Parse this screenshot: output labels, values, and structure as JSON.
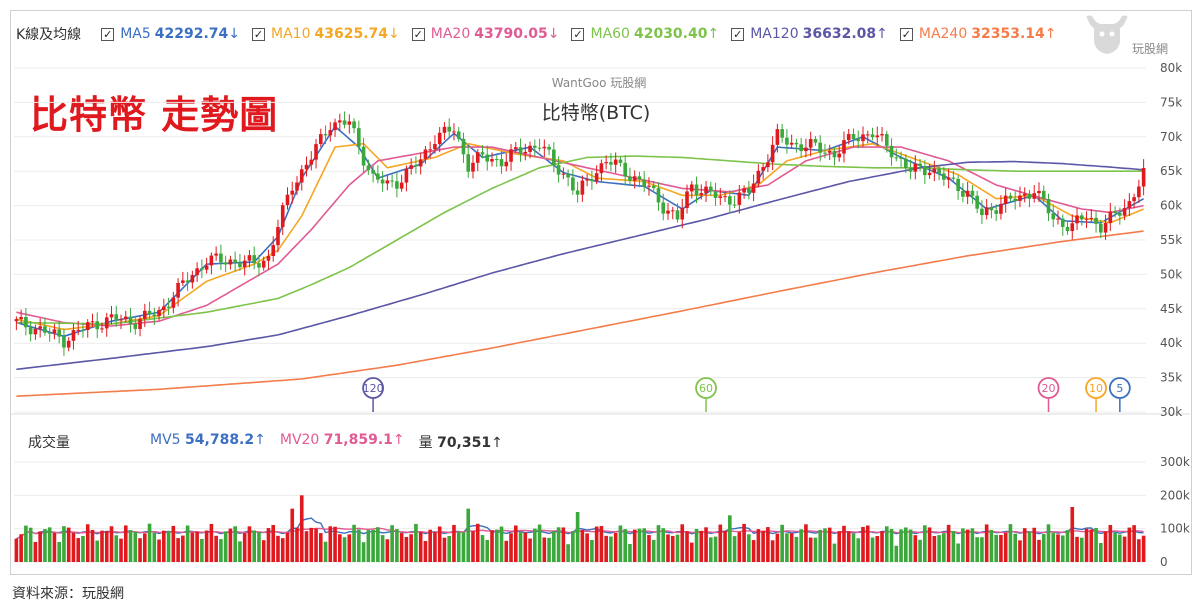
{
  "chart_title_overlay": "比特幣 走勢圖",
  "brand_watermark": "WantGoo 玩股網",
  "logo_text": "玩股網",
  "source_note": "資料來源：玩股網",
  "price_panel": {
    "legend_label": "K線及均線",
    "ma": [
      {
        "name": "MA5",
        "value": "42292.74",
        "arrow": "↓",
        "color": "#3b6fc1"
      },
      {
        "name": "MA10",
        "value": "43625.74",
        "arrow": "↓",
        "color": "#f5a623"
      },
      {
        "name": "MA20",
        "value": "43790.05",
        "arrow": "↓",
        "color": "#e05b94"
      },
      {
        "name": "MA60",
        "value": "42030.40",
        "arrow": "↑",
        "color": "#7ec34a"
      },
      {
        "name": "MA120",
        "value": "36632.08",
        "arrow": "↑",
        "color": "#5b57a6"
      },
      {
        "name": "MA240",
        "value": "32353.14",
        "arrow": "↑",
        "color": "#f47c4b"
      }
    ]
  },
  "volume_panel": {
    "legend_label": "成交量",
    "items": [
      {
        "name": "MV5",
        "value": "54,788.2",
        "arrow": "↑",
        "color": "#3b6fc1"
      },
      {
        "name": "MV20",
        "value": "71,859.1",
        "arrow": "↑",
        "color": "#e05b94"
      },
      {
        "name": "量",
        "value": "70,351",
        "arrow": "↑",
        "color": "#333333"
      }
    ]
  },
  "chart_data": [
    {
      "type": "candlestick",
      "title": "比特幣(BTC)",
      "ylim": [
        30000,
        80000
      ],
      "yticks": [
        "30k",
        "35k",
        "40k",
        "45k",
        "50k",
        "55k",
        "60k",
        "65k",
        "70k",
        "75k",
        "80k"
      ],
      "grid": true,
      "colors": {
        "up": "#e0191f",
        "down": "#3aa83a"
      },
      "price_anchors": [
        [
          0,
          43000
        ],
        [
          5,
          42000
        ],
        [
          10,
          40500
        ],
        [
          15,
          42500
        ],
        [
          20,
          43500
        ],
        [
          25,
          43200
        ],
        [
          30,
          44500
        ],
        [
          33,
          47000
        ],
        [
          37,
          50000
        ],
        [
          40,
          52000
        ],
        [
          45,
          52000
        ],
        [
          50,
          51500
        ],
        [
          53,
          52500
        ],
        [
          55,
          57000
        ],
        [
          58,
          63000
        ],
        [
          62,
          67000
        ],
        [
          66,
          72000
        ],
        [
          70,
          72000
        ],
        [
          73,
          67000
        ],
        [
          75,
          64000
        ],
        [
          78,
          63000
        ],
        [
          80,
          63500
        ],
        [
          85,
          66500
        ],
        [
          88,
          70000
        ],
        [
          92,
          71000
        ],
        [
          95,
          66000
        ],
        [
          98,
          67000
        ],
        [
          102,
          66500
        ],
        [
          106,
          68000
        ],
        [
          110,
          69000
        ],
        [
          113,
          66000
        ],
        [
          116,
          64000
        ],
        [
          118,
          61500
        ],
        [
          121,
          64500
        ],
        [
          124,
          66500
        ],
        [
          127,
          65500
        ],
        [
          130,
          64000
        ],
        [
          133,
          62500
        ],
        [
          136,
          60000
        ],
        [
          139,
          58000
        ],
        [
          142,
          63000
        ],
        [
          145,
          62000
        ],
        [
          148,
          61000
        ],
        [
          151,
          61000
        ],
        [
          154,
          62000
        ],
        [
          157,
          66000
        ],
        [
          160,
          70000
        ],
        [
          163,
          69000
        ],
        [
          168,
          68500
        ],
        [
          172,
          67500
        ],
        [
          176,
          70000
        ],
        [
          180,
          70500
        ],
        [
          184,
          68000
        ],
        [
          188,
          65000
        ],
        [
          192,
          65500
        ],
        [
          196,
          63500
        ],
        [
          200,
          62000
        ],
        [
          203,
          58500
        ],
        [
          207,
          60500
        ],
        [
          211,
          61000
        ],
        [
          214,
          62500
        ],
        [
          218,
          58000
        ],
        [
          222,
          57000
        ],
        [
          225,
          58500
        ],
        [
          228,
          57000
        ],
        [
          231,
          58500
        ],
        [
          234,
          60500
        ],
        [
          237,
          64500
        ]
      ],
      "ma_shape": {
        "MA5": [
          [
            0,
            43000
          ],
          [
            10,
            41000
          ],
          [
            20,
            43200
          ],
          [
            30,
            44500
          ],
          [
            40,
            51500
          ],
          [
            50,
            51800
          ],
          [
            55,
            55500
          ],
          [
            60,
            64000
          ],
          [
            67,
            71500
          ],
          [
            72,
            68500
          ],
          [
            76,
            64000
          ],
          [
            85,
            66000
          ],
          [
            92,
            70500
          ],
          [
            98,
            67000
          ],
          [
            108,
            68500
          ],
          [
            115,
            64800
          ],
          [
            122,
            63500
          ],
          [
            132,
            62800
          ],
          [
            140,
            59500
          ],
          [
            146,
            62200
          ],
          [
            154,
            61500
          ],
          [
            160,
            68500
          ],
          [
            170,
            68000
          ],
          [
            178,
            70000
          ],
          [
            186,
            67000
          ],
          [
            196,
            64000
          ],
          [
            204,
            59500
          ],
          [
            214,
            61500
          ],
          [
            220,
            57800
          ],
          [
            228,
            57500
          ],
          [
            237,
            61000
          ]
        ],
        "MA10": [
          [
            0,
            43500
          ],
          [
            10,
            42000
          ],
          [
            20,
            42800
          ],
          [
            30,
            44000
          ],
          [
            40,
            49000
          ],
          [
            50,
            51500
          ],
          [
            55,
            53500
          ],
          [
            60,
            58500
          ],
          [
            67,
            68500
          ],
          [
            73,
            69000
          ],
          [
            78,
            65500
          ],
          [
            88,
            67000
          ],
          [
            95,
            69000
          ],
          [
            105,
            67500
          ],
          [
            115,
            66500
          ],
          [
            122,
            64000
          ],
          [
            132,
            63500
          ],
          [
            140,
            61500
          ],
          [
            148,
            61500
          ],
          [
            156,
            63000
          ],
          [
            162,
            66500
          ],
          [
            170,
            68000
          ],
          [
            180,
            69000
          ],
          [
            188,
            67000
          ],
          [
            198,
            64500
          ],
          [
            206,
            61000
          ],
          [
            214,
            61500
          ],
          [
            222,
            58500
          ],
          [
            230,
            57500
          ],
          [
            237,
            59500
          ]
        ],
        "MA20": [
          [
            0,
            44500
          ],
          [
            10,
            43000
          ],
          [
            20,
            42500
          ],
          [
            30,
            43200
          ],
          [
            40,
            45500
          ],
          [
            50,
            49500
          ],
          [
            55,
            51500
          ],
          [
            62,
            56500
          ],
          [
            70,
            63000
          ],
          [
            76,
            66500
          ],
          [
            84,
            67500
          ],
          [
            92,
            68500
          ],
          [
            100,
            68500
          ],
          [
            110,
            67000
          ],
          [
            120,
            65500
          ],
          [
            130,
            64000
          ],
          [
            140,
            62500
          ],
          [
            150,
            62000
          ],
          [
            158,
            63000
          ],
          [
            166,
            66500
          ],
          [
            176,
            68500
          ],
          [
            186,
            68500
          ],
          [
            196,
            66500
          ],
          [
            206,
            63000
          ],
          [
            216,
            61000
          ],
          [
            224,
            59500
          ],
          [
            230,
            59000
          ],
          [
            237,
            60000
          ]
        ],
        "MA60": [
          [
            0,
            43000
          ],
          [
            20,
            42800
          ],
          [
            40,
            44500
          ],
          [
            55,
            46500
          ],
          [
            62,
            48500
          ],
          [
            70,
            51000
          ],
          [
            80,
            55000
          ],
          [
            90,
            59000
          ],
          [
            100,
            62500
          ],
          [
            110,
            65500
          ],
          [
            120,
            67000
          ],
          [
            130,
            67200
          ],
          [
            140,
            67000
          ],
          [
            150,
            66500
          ],
          [
            160,
            66000
          ],
          [
            170,
            65700
          ],
          [
            180,
            65500
          ],
          [
            190,
            65500
          ],
          [
            200,
            65200
          ],
          [
            210,
            65000
          ],
          [
            220,
            65000
          ],
          [
            230,
            65000
          ],
          [
            237,
            65000
          ]
        ],
        "MA120": [
          [
            0,
            36200
          ],
          [
            20,
            37800
          ],
          [
            40,
            39500
          ],
          [
            55,
            41200
          ],
          [
            70,
            44000
          ],
          [
            85,
            47000
          ],
          [
            100,
            50200
          ],
          [
            115,
            53000
          ],
          [
            130,
            55500
          ],
          [
            145,
            58000
          ],
          [
            160,
            60800
          ],
          [
            175,
            63500
          ],
          [
            190,
            65500
          ],
          [
            200,
            66300
          ],
          [
            210,
            66400
          ],
          [
            220,
            66100
          ],
          [
            230,
            65600
          ],
          [
            237,
            65200
          ]
        ],
        "MA240": [
          [
            0,
            32300
          ],
          [
            30,
            33300
          ],
          [
            60,
            34800
          ],
          [
            80,
            36800
          ],
          [
            100,
            39300
          ],
          [
            120,
            42000
          ],
          [
            140,
            44700
          ],
          [
            160,
            47500
          ],
          [
            180,
            50200
          ],
          [
            200,
            52700
          ],
          [
            220,
            54800
          ],
          [
            237,
            56300
          ]
        ]
      },
      "markers": [
        {
          "label": "120",
          "candle_index": 75,
          "color": "#5b57a6"
        },
        {
          "label": "60",
          "candle_index": 145,
          "color": "#7ec34a"
        },
        {
          "label": "20",
          "candle_index": 217,
          "color": "#e05b94"
        },
        {
          "label": "10",
          "candle_index": 227,
          "color": "#f5a623"
        },
        {
          "label": "5",
          "candle_index": 232,
          "color": "#3b6fc1"
        }
      ]
    },
    {
      "type": "bar",
      "title": "成交量",
      "ylim": [
        0,
        300000
      ],
      "yticks": [
        "0",
        "100k",
        "200k",
        "300k"
      ],
      "series": [
        {
          "name": "MV5",
          "color": "#3b6fc1"
        },
        {
          "name": "MV20",
          "color": "#e05b94"
        }
      ],
      "notable_bars": [
        {
          "index": 58,
          "value": 160000
        },
        {
          "index": 60,
          "value": 200000
        },
        {
          "index": 95,
          "value": 160000
        },
        {
          "index": 118,
          "value": 150000
        },
        {
          "index": 150,
          "value": 140000
        },
        {
          "index": 222,
          "value": 165000
        }
      ]
    }
  ]
}
